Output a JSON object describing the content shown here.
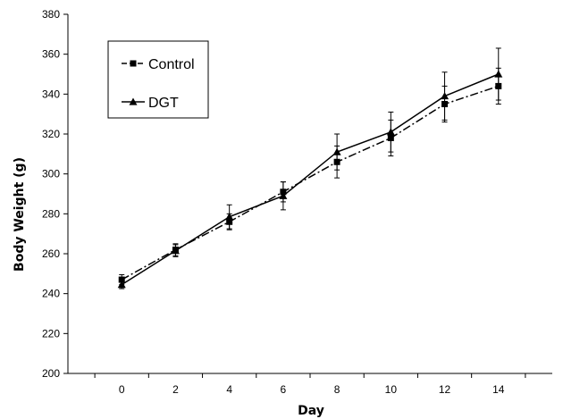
{
  "chart_data": {
    "type": "line",
    "title": "",
    "xlabel": "Day",
    "ylabel": "Body  Weight (g)",
    "x": [
      0,
      2,
      4,
      6,
      8,
      10,
      12,
      14
    ],
    "xlim": [
      -2,
      16
    ],
    "ylim": [
      200,
      380
    ],
    "xticks": [
      0,
      2,
      4,
      6,
      8,
      10,
      12,
      14
    ],
    "yticks": [
      200,
      220,
      240,
      260,
      280,
      300,
      320,
      340,
      360,
      380
    ],
    "grid": false,
    "legend_position": "top-left",
    "series": [
      {
        "name": "Control",
        "marker": "square",
        "line_style": "dash-dot",
        "color": "#000000",
        "values": [
          247,
          262,
          276,
          291,
          306,
          318,
          335,
          344
        ],
        "errors": [
          2.5,
          3,
          4,
          5,
          8,
          9,
          9,
          9
        ]
      },
      {
        "name": "DGT",
        "marker": "triangle",
        "line_style": "solid",
        "color": "#000000",
        "values": [
          244.5,
          261.5,
          278.5,
          289,
          311,
          321,
          339,
          350
        ],
        "errors": [
          2,
          3,
          6,
          7,
          9,
          10,
          12,
          13
        ]
      }
    ]
  }
}
